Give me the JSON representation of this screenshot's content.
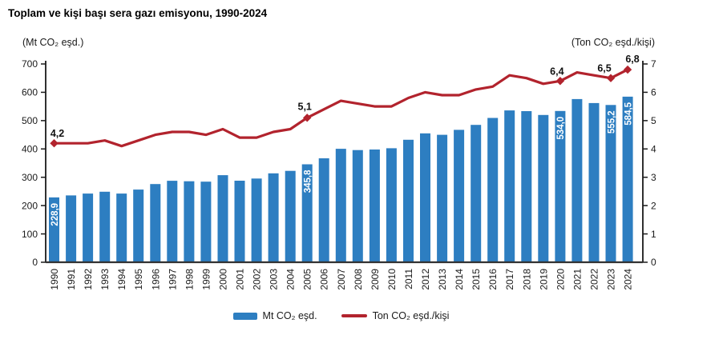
{
  "title": "Toplam ve kişi başı sera gazı emisyonu, 1990-2024",
  "left_axis_unit": "(Mt CO₂ eşd.)",
  "right_axis_unit": "(Ton CO₂ eşd./kişi)",
  "legend": {
    "bars": "Mt CO₂ eşd.",
    "line": "Ton CO₂ eşd./kişi"
  },
  "colors": {
    "bar": "#2d7ec1",
    "line": "#b2232d",
    "text": "#1a1a1a",
    "axis": "#333333",
    "bar_label": "#ffffff"
  },
  "chart_data": {
    "type": "bar",
    "subtype": "dual-axis bar + line",
    "title": "Toplam ve kişi başı sera gazı emisyonu, 1990-2024",
    "grid": false,
    "legend_position": "bottom",
    "categories": [
      1990,
      1991,
      1992,
      1993,
      1994,
      1995,
      1996,
      1997,
      1998,
      1999,
      2000,
      2001,
      2002,
      2003,
      2004,
      2005,
      2006,
      2007,
      2008,
      2009,
      2010,
      2011,
      2012,
      2013,
      2014,
      2015,
      2016,
      2017,
      2018,
      2019,
      2020,
      2021,
      2022,
      2023,
      2024
    ],
    "series": [
      {
        "name": "Mt CO₂ eşd.",
        "type": "bar",
        "axis": "left",
        "values": [
          228.9,
          235.9,
          242.5,
          249.0,
          242.5,
          256.5,
          276.0,
          287.5,
          286.0,
          284.5,
          307.5,
          288.0,
          295.5,
          314.0,
          322.5,
          345.8,
          367.0,
          400.5,
          396.0,
          398.0,
          402.5,
          432.5,
          455.0,
          450.0,
          467.5,
          485.0,
          509.5,
          536.0,
          533.5,
          520.0,
          534.0,
          576.0,
          562.0,
          555.2,
          584.5
        ]
      },
      {
        "name": "Ton CO₂ eşd./kişi",
        "type": "line",
        "axis": "right",
        "values": [
          4.2,
          4.2,
          4.2,
          4.3,
          4.1,
          4.3,
          4.5,
          4.6,
          4.6,
          4.5,
          4.7,
          4.4,
          4.4,
          4.6,
          4.7,
          5.1,
          5.4,
          5.7,
          5.6,
          5.5,
          5.5,
          5.8,
          6.0,
          5.9,
          5.9,
          6.1,
          6.2,
          6.6,
          6.5,
          6.3,
          6.4,
          6.7,
          6.6,
          6.5,
          6.8
        ]
      }
    ],
    "left_axis": {
      "label": "(Mt CO₂ eşd.)",
      "min": 0,
      "max": 700,
      "step": 100
    },
    "right_axis": {
      "label": "(Ton CO₂ eşd./kişi)",
      "min": 0,
      "max": 7,
      "step": 1
    },
    "bar_value_labels": [
      {
        "year": 1990,
        "text": "228,9"
      },
      {
        "year": 2005,
        "text": "345,8"
      },
      {
        "year": 2020,
        "text": "534,0"
      },
      {
        "year": 2023,
        "text": "555,2"
      },
      {
        "year": 2024,
        "text": "584,5"
      }
    ],
    "line_value_labels": [
      {
        "year": 1990,
        "text": "4,2"
      },
      {
        "year": 2005,
        "text": "5,1"
      },
      {
        "year": 2020,
        "text": "6,4"
      },
      {
        "year": 2023,
        "text": "6,5"
      },
      {
        "year": 2024,
        "text": "6,8"
      }
    ]
  }
}
